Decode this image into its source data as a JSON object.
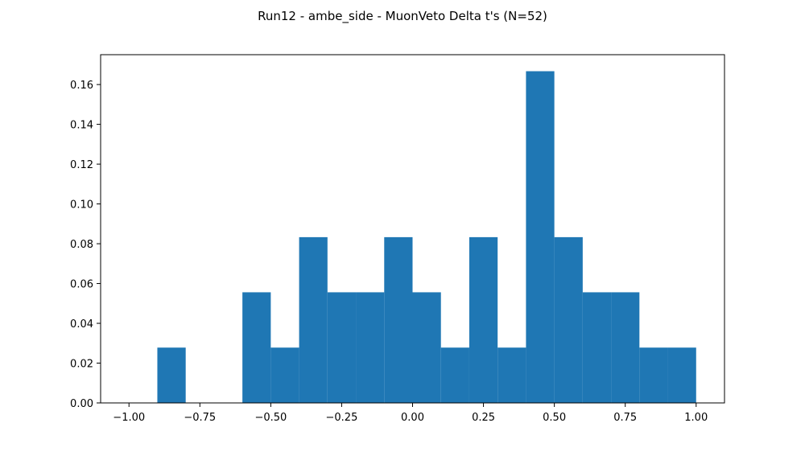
{
  "chart_data": {
    "type": "bar",
    "title": "Run12 - ambe_side - MuonVeto Delta t's (N=52)",
    "xlabel": "",
    "ylabel": "",
    "xlim": [
      -1.1,
      1.1
    ],
    "ylim": [
      0,
      0.175
    ],
    "bin_edges": [
      -1.0,
      -0.9,
      -0.8,
      -0.7,
      -0.6,
      -0.5,
      -0.4,
      -0.3,
      -0.2,
      -0.1,
      0.0,
      0.1,
      0.2,
      0.3,
      0.4,
      0.5,
      0.6,
      0.7,
      0.8,
      0.9,
      1.0
    ],
    "values": [
      0,
      0.0278,
      0,
      0,
      0.0556,
      0.0278,
      0.0833,
      0.0556,
      0.0556,
      0.0833,
      0.0556,
      0.0278,
      0.0833,
      0.0278,
      0.1667,
      0.0833,
      0.0556,
      0.0556,
      0.0278,
      0.0278
    ],
    "bar_color": "#1f77b4",
    "x_ticks": [
      -1.0,
      -0.75,
      -0.5,
      -0.25,
      0.0,
      0.25,
      0.5,
      0.75,
      1.0
    ],
    "x_tick_labels": [
      "−1.00",
      "−0.75",
      "−0.50",
      "−0.25",
      "0.00",
      "0.25",
      "0.50",
      "0.75",
      "1.00"
    ],
    "y_ticks": [
      0,
      0.02,
      0.04,
      0.06,
      0.08,
      0.1,
      0.12,
      0.14,
      0.16
    ],
    "y_tick_labels": [
      "0.00",
      "0.02",
      "0.04",
      "0.06",
      "0.08",
      "0.10",
      "0.12",
      "0.14",
      "0.16"
    ],
    "grid": false,
    "legend": "none"
  }
}
